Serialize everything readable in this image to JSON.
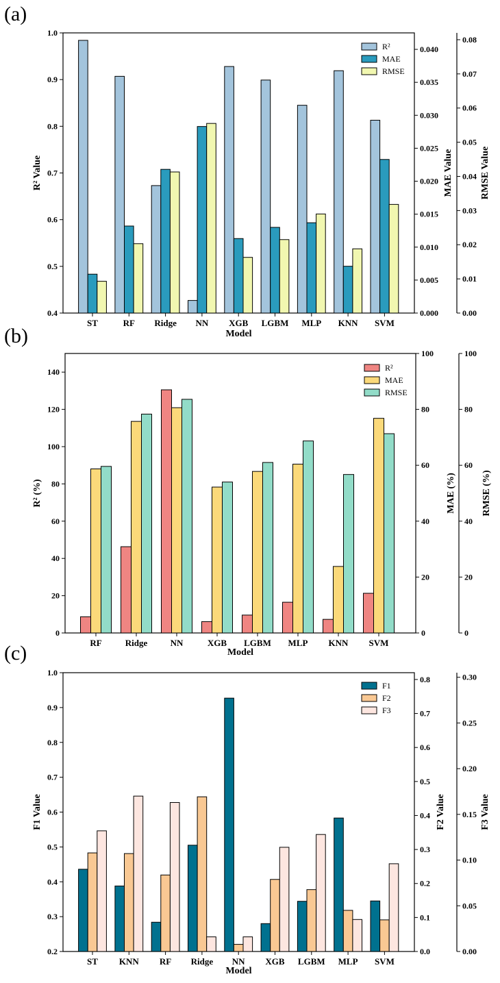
{
  "colors": {
    "a": [
      "#a3c4dc",
      "#2a9bbd",
      "#f1f7b0"
    ],
    "b": [
      "#ef8582",
      "#fbd97a",
      "#92dcc8"
    ],
    "c": [
      "#00718f",
      "#f9c893",
      "#fde6e0"
    ],
    "edge": "#000000"
  },
  "chart_data": [
    {
      "panel_label": "(a)",
      "type": "bar",
      "xlabel": "Model",
      "categories": [
        "ST",
        "RF",
        "Ridge",
        "NN",
        "XGB",
        "LGBM",
        "MLP",
        "KNN",
        "SVM"
      ],
      "axes": [
        {
          "label": "R² Value",
          "ylim": [
            0.4,
            1.0
          ],
          "ticks": [
            "0.4",
            "0.5",
            "0.6",
            "0.7",
            "0.8",
            "0.9",
            "1.0"
          ]
        },
        {
          "label": "MAE Value",
          "ylim": [
            0.0,
            0.0425
          ],
          "ticks": [
            "0.000",
            "0.005",
            "0.010",
            "0.015",
            "0.020",
            "0.025",
            "0.030",
            "0.035",
            "0.040"
          ]
        },
        {
          "label": "RMSE Value",
          "ylim": [
            0.0,
            0.082
          ],
          "ticks": [
            "0.00",
            "0.01",
            "0.02",
            "0.03",
            "0.04",
            "0.05",
            "0.06",
            "0.07",
            "0.08"
          ]
        }
      ],
      "series": [
        {
          "name": "R²",
          "axis": 0,
          "values": [
            0.984,
            0.907,
            0.673,
            0.427,
            0.928,
            0.899,
            0.845,
            0.919,
            0.813
          ]
        },
        {
          "name": "MAE",
          "axis": 1,
          "values": [
            0.0059,
            0.0132,
            0.0218,
            0.0283,
            0.0113,
            0.013,
            0.0137,
            0.0071,
            0.0233
          ]
        },
        {
          "name": "RMSE",
          "axis": 2,
          "values": [
            0.0093,
            0.0203,
            0.0413,
            0.0555,
            0.0163,
            0.0215,
            0.029,
            0.0188,
            0.0318
          ]
        }
      ],
      "legend_position": "top-right"
    },
    {
      "panel_label": "(b)",
      "type": "bar",
      "xlabel": "Model",
      "categories": [
        "RF",
        "Ridge",
        "NN",
        "XGB",
        "LGBM",
        "MLP",
        "KNN",
        "SVM"
      ],
      "axes": [
        {
          "label": "R² (%)",
          "ylim": [
            0,
            150
          ],
          "ticks": [
            "0",
            "20",
            "40",
            "60",
            "80",
            "100",
            "120",
            "140"
          ]
        },
        {
          "label": "MAE (%)",
          "ylim": [
            0,
            100
          ],
          "ticks": [
            "0",
            "20",
            "40",
            "60",
            "80",
            "100"
          ]
        },
        {
          "label": "RMSE (%)",
          "ylim": [
            0,
            100
          ],
          "ticks": [
            "0",
            "20",
            "40",
            "60",
            "80",
            "100"
          ]
        }
      ],
      "series": [
        {
          "name": "R²",
          "axis": 0,
          "values": [
            8.7,
            46.3,
            130.5,
            6.1,
            9.6,
            16.5,
            7.3,
            21.3
          ]
        },
        {
          "name": "MAE",
          "axis": 1,
          "values": [
            58.7,
            75.7,
            80.6,
            52.2,
            57.8,
            60.4,
            23.8,
            76.8
          ]
        },
        {
          "name": "RMSE",
          "axis": 2,
          "values": [
            59.6,
            78.3,
            83.6,
            54.0,
            61.0,
            68.7,
            56.7,
            71.3
          ]
        }
      ],
      "legend_position": "top-right"
    },
    {
      "panel_label": "(c)",
      "type": "bar",
      "xlabel": "Model",
      "categories": [
        "ST",
        "KNN",
        "RF",
        "Ridge",
        "NN",
        "XGB",
        "LGBM",
        "MLP",
        "SVM"
      ],
      "axes": [
        {
          "label": "F1 Value",
          "ylim": [
            0.2,
            1.0
          ],
          "ticks": [
            "0.2",
            "0.3",
            "0.4",
            "0.5",
            "0.6",
            "0.7",
            "0.8",
            "0.9",
            "1.0"
          ]
        },
        {
          "label": "F2 Value",
          "ylim": [
            0.0,
            0.82
          ],
          "ticks": [
            "0.0",
            "0.1",
            "0.2",
            "0.3",
            "0.4",
            "0.5",
            "0.6",
            "0.7",
            "0.8"
          ]
        },
        {
          "label": "F3 Value",
          "ylim": [
            0.0,
            0.305
          ],
          "ticks": [
            "0.00",
            "0.05",
            "0.10",
            "0.15",
            "0.20",
            "0.25",
            "0.30"
          ]
        }
      ],
      "series": [
        {
          "name": "F1",
          "axis": 0,
          "values": [
            0.436,
            0.388,
            0.284,
            0.505,
            0.927,
            0.28,
            0.344,
            0.583,
            0.345
          ]
        },
        {
          "name": "F2",
          "axis": 1,
          "values": [
            0.29,
            0.288,
            0.225,
            0.455,
            0.021,
            0.212,
            0.182,
            0.121,
            0.093
          ]
        },
        {
          "name": "F3",
          "axis": 2,
          "values": [
            0.132,
            0.17,
            0.163,
            0.016,
            0.016,
            0.114,
            0.128,
            0.035,
            0.096
          ]
        }
      ],
      "legend_position": "top-right"
    }
  ]
}
